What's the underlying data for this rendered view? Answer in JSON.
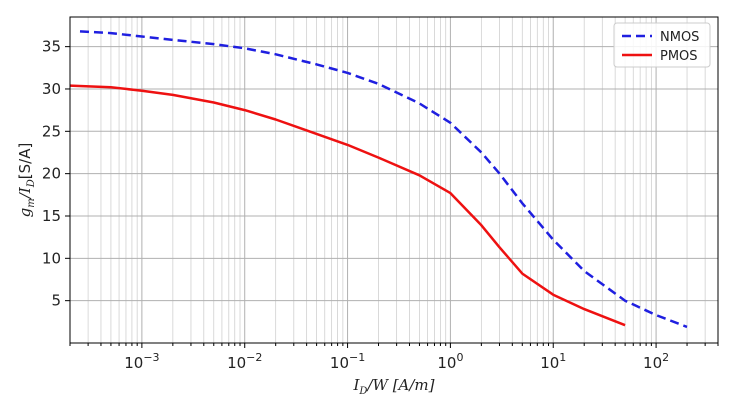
{
  "chart_data": {
    "type": "line",
    "xscale": "log",
    "xlim": [
      0.0002,
      400
    ],
    "ylim": [
      0,
      38.5
    ],
    "xlabel": "I_D/W [A/m]",
    "ylabel": "g_m/I_D [S/A]",
    "grid": true,
    "legend_position": "top-right",
    "xticks": [
      {
        "value": 0.001,
        "base": "10",
        "exp": "−3"
      },
      {
        "value": 0.01,
        "base": "10",
        "exp": "−2"
      },
      {
        "value": 0.1,
        "base": "10",
        "exp": "−1"
      },
      {
        "value": 1,
        "base": "10",
        "exp": "0"
      },
      {
        "value": 10,
        "base": "10",
        "exp": "1"
      },
      {
        "value": 100,
        "base": "10",
        "exp": "2"
      }
    ],
    "yticks": [
      5,
      10,
      15,
      20,
      25,
      30,
      35
    ],
    "series": [
      {
        "name": "NMOS",
        "color": "#1f1fe0",
        "dash": "dashed",
        "x": [
          0.00025,
          0.0005,
          0.001,
          0.002,
          0.005,
          0.01,
          0.02,
          0.05,
          0.1,
          0.2,
          0.5,
          1,
          2,
          3,
          5,
          10,
          20,
          50,
          100,
          200
        ],
        "y": [
          36.8,
          36.6,
          36.2,
          35.8,
          35.3,
          34.8,
          34.1,
          32.9,
          31.9,
          30.6,
          28.3,
          26.0,
          22.5,
          20.0,
          16.5,
          12.2,
          8.5,
          5.0,
          3.3,
          1.9
        ]
      },
      {
        "name": "PMOS",
        "color": "#ee1111",
        "dash": "solid",
        "x": [
          0.0002,
          0.0005,
          0.001,
          0.002,
          0.005,
          0.01,
          0.02,
          0.05,
          0.1,
          0.2,
          0.5,
          1,
          2,
          3,
          5,
          10,
          20,
          50
        ],
        "y": [
          30.4,
          30.2,
          29.8,
          29.3,
          28.4,
          27.5,
          26.4,
          24.7,
          23.4,
          21.9,
          19.8,
          17.7,
          13.9,
          11.3,
          8.2,
          5.7,
          4.0,
          2.1
        ]
      }
    ]
  }
}
